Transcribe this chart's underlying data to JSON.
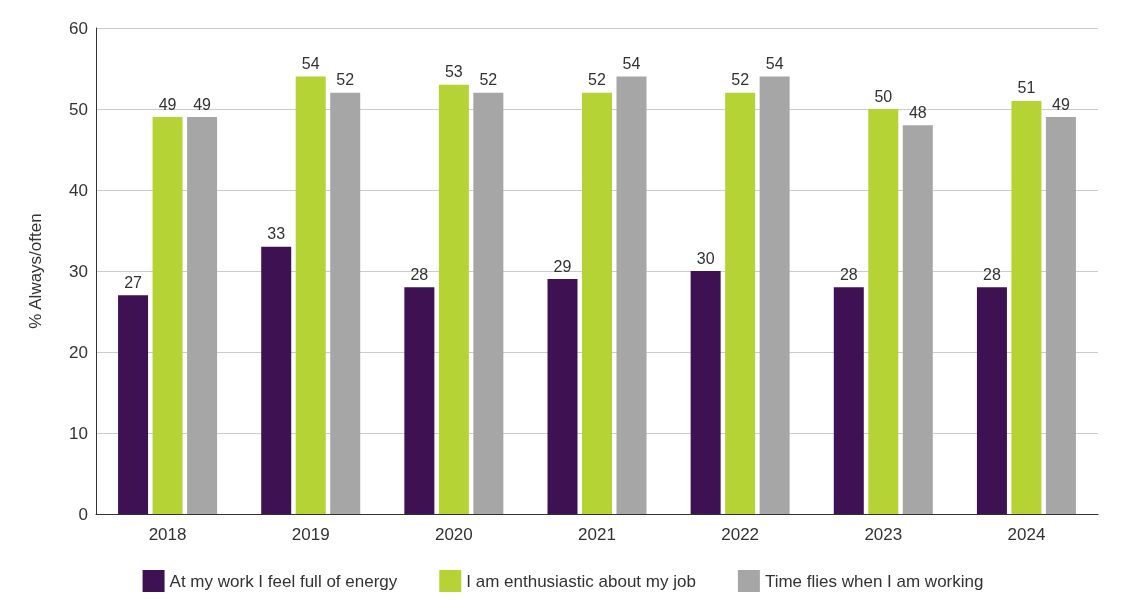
{
  "chart_data": {
    "type": "bar",
    "ylabel": "% Always/often",
    "categories": [
      "2018",
      "2019",
      "2020",
      "2021",
      "2022",
      "2023",
      "2024"
    ],
    "series": [
      {
        "name": "At my work I feel full of energy",
        "color": "#3d1152",
        "values": [
          27,
          33,
          28,
          29,
          30,
          28,
          28
        ]
      },
      {
        "name": "I am enthusiastic about my job",
        "color": "#b5d334",
        "values": [
          49,
          54,
          53,
          52,
          52,
          50,
          51
        ]
      },
      {
        "name": "Time flies when I am working",
        "color": "#a6a6a6",
        "values": [
          49,
          52,
          52,
          54,
          54,
          48,
          49
        ]
      }
    ],
    "ylim": [
      0,
      60
    ],
    "yticks": [
      0,
      10,
      20,
      30,
      40,
      50,
      60
    ],
    "grid": "y",
    "legend": "bottom",
    "data_labels": true
  }
}
